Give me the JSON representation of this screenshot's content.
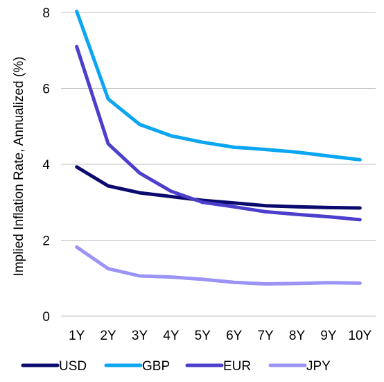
{
  "chart_data": {
    "type": "line",
    "title": "",
    "xlabel": "",
    "ylabel": "Implied Inflation Rate, Annualized (%)",
    "categories": [
      "1Y",
      "2Y",
      "3Y",
      "4Y",
      "5Y",
      "6Y",
      "7Y",
      "8Y",
      "9Y",
      "10Y"
    ],
    "ylim": [
      0,
      8
    ],
    "yticks": [
      0,
      2,
      4,
      6,
      8
    ],
    "grid": true,
    "legend_position": "bottom",
    "series": [
      {
        "name": "USD",
        "color": "#0b0a6e",
        "values": [
          3.93,
          3.43,
          3.25,
          3.15,
          3.05,
          2.98,
          2.91,
          2.88,
          2.86,
          2.85
        ]
      },
      {
        "name": "GBP",
        "color": "#0aa6f2",
        "values": [
          8.03,
          5.72,
          5.05,
          4.75,
          4.58,
          4.45,
          4.39,
          4.32,
          4.22,
          4.12
        ]
      },
      {
        "name": "EUR",
        "color": "#4b3fcc",
        "values": [
          7.1,
          4.54,
          3.77,
          3.29,
          3.0,
          2.88,
          2.75,
          2.68,
          2.62,
          2.54
        ]
      },
      {
        "name": "JPY",
        "color": "#9b93f5",
        "values": [
          1.82,
          1.25,
          1.06,
          1.03,
          0.97,
          0.89,
          0.85,
          0.86,
          0.88,
          0.87
        ]
      }
    ]
  }
}
